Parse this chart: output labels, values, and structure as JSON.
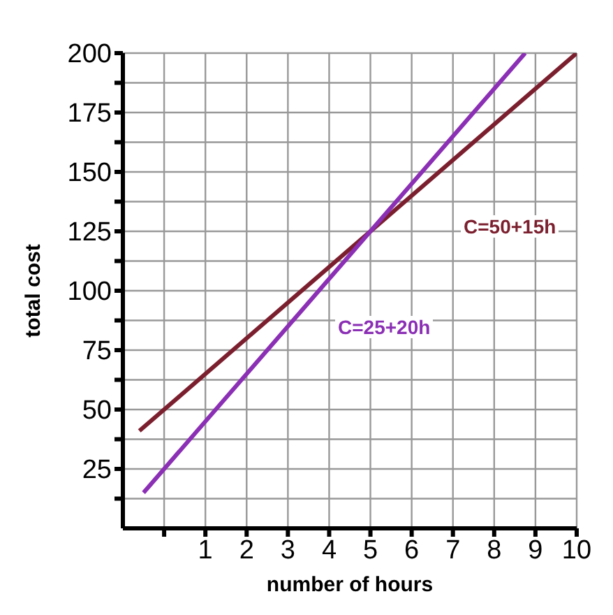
{
  "chart_data": {
    "type": "line",
    "xlabel": "number of hours",
    "ylabel": "total cost",
    "series": [
      {
        "color": "#7b1f2e",
        "x": [
          -0.6,
          10
        ],
        "values": [
          41,
          200
        ]
      },
      {
        "color": "#8b2fb5",
        "x": [
          -0.5,
          8.75
        ],
        "values": [
          15,
          200
        ]
      }
    ],
    "xlim": [
      -1,
      10
    ],
    "ylim": [
      0,
      200
    ],
    "xticks": [
      {
        "value": 0,
        "label": null
      },
      1,
      2,
      3,
      4,
      5,
      6,
      7,
      8,
      9,
      10
    ],
    "yticks": [
      {
        "value": 12.5,
        "label": null
      },
      25,
      {
        "value": 37.5,
        "label": null
      },
      50,
      {
        "value": 62.5,
        "label": null
      },
      75,
      {
        "value": 87.5,
        "label": null
      },
      100,
      {
        "value": 112.5,
        "label": null
      },
      125,
      {
        "value": 137.5,
        "label": null
      },
      150,
      {
        "value": 162.5,
        "label": null
      },
      175,
      {
        "value": 187.5,
        "label": null
      },
      200
    ],
    "annotations": [
      "C=50+15h",
      "C=25+20h"
    ],
    "grid": true,
    "marker": "none",
    "line_style": "solid"
  }
}
